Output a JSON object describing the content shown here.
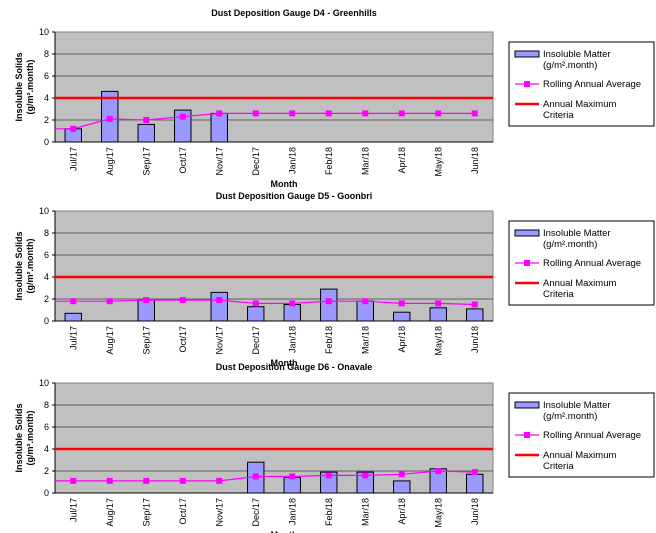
{
  "chart_data": [
    {
      "type": "bar",
      "title": "Dust Deposition Gauge D4 - Greenhills",
      "xlabel": "Month",
      "ylabel": [
        "Insoluble Solids",
        "(g/m².month)"
      ],
      "categories": [
        "Jul/17",
        "Aug/17",
        "Sep/17",
        "Oct/17",
        "Nov/17",
        "Dec/17",
        "Jan/18",
        "Feb/18",
        "Mar/18",
        "Apr/18",
        "May/18",
        "Jun/18"
      ],
      "ylim": [
        0,
        10
      ],
      "yticks": [
        "0",
        "2",
        "4",
        "6",
        "8",
        "10"
      ],
      "grid": true,
      "legend_position": "right",
      "series": [
        {
          "name": "Insoluble Matter (g/m².month)",
          "type": "bar",
          "values": [
            1.2,
            4.6,
            1.6,
            2.9,
            2.6,
            null,
            null,
            null,
            null,
            null,
            null,
            null
          ]
        },
        {
          "name": "Rolling Annual Average",
          "type": "line",
          "values": [
            1.2,
            2.1,
            2.0,
            2.3,
            2.6,
            2.6,
            2.6,
            2.6,
            2.6,
            2.6,
            2.6,
            2.6
          ]
        },
        {
          "name": "Annual Maximum Criteria",
          "type": "hline",
          "value": 4
        }
      ]
    },
    {
      "type": "bar",
      "title": "Dust Deposition Gauge D5 - Goonbri",
      "xlabel": "Month",
      "ylabel": [
        "Insoluble Solids",
        "(g/m².month)"
      ],
      "categories": [
        "Jul/17",
        "Aug/17",
        "Sep/17",
        "Oct/17",
        "Nov/17",
        "Dec/17",
        "Jan/18",
        "Feb/18",
        "Mar/18",
        "Apr/18",
        "May/18",
        "Jun/18"
      ],
      "ylim": [
        0,
        10
      ],
      "yticks": [
        "0",
        "2",
        "4",
        "6",
        "8",
        "10"
      ],
      "grid": true,
      "legend_position": "right",
      "series": [
        {
          "name": "Insoluble Matter (g/m².month)",
          "type": "bar",
          "values": [
            0.7,
            null,
            1.9,
            null,
            2.6,
            1.3,
            1.5,
            2.9,
            1.8,
            0.8,
            1.2,
            1.1
          ]
        },
        {
          "name": "Rolling Annual Average",
          "type": "line",
          "values": [
            1.8,
            1.8,
            1.9,
            1.9,
            1.9,
            1.6,
            1.6,
            1.8,
            1.8,
            1.6,
            1.6,
            1.5
          ]
        },
        {
          "name": "Annual Maximum Criteria",
          "type": "hline",
          "value": 4
        }
      ]
    },
    {
      "type": "bar",
      "title": "Dust Deposition Gauge D6 - Onavale",
      "xlabel": "Month",
      "ylabel": [
        "Insoluble Solids",
        "(g/m².month)"
      ],
      "categories": [
        "Jul/17",
        "Aug/17",
        "Sep/17",
        "Oct/17",
        "Nov/17",
        "Dec/17",
        "Jan/18",
        "Feb/18",
        "Mar/18",
        "Apr/18",
        "May/18",
        "Jun/18"
      ],
      "ylim": [
        0,
        10
      ],
      "yticks": [
        "0",
        "2",
        "4",
        "6",
        "8",
        "10"
      ],
      "grid": true,
      "legend_position": "right",
      "series": [
        {
          "name": "Insoluble Matter (g/m².month)",
          "type": "bar",
          "values": [
            null,
            null,
            null,
            null,
            null,
            2.8,
            1.4,
            1.9,
            1.9,
            1.1,
            2.2,
            1.7
          ]
        },
        {
          "name": "Rolling Annual Average",
          "type": "line",
          "values": [
            1.1,
            1.1,
            1.1,
            1.1,
            1.1,
            1.5,
            1.5,
            1.6,
            1.6,
            1.7,
            2.0,
            1.9
          ]
        },
        {
          "name": "Annual Maximum Criteria",
          "type": "hline",
          "value": 4
        }
      ]
    }
  ],
  "legend": {
    "bar_label_line1": "Insoluble Matter",
    "bar_label_line2": "(g/m².month)",
    "avg_label": "Rolling Annual Average",
    "crit_label_line1": "Annual Maximum",
    "crit_label_line2": "Criteria"
  },
  "colors": {
    "plot_bg": "#c0c0c0",
    "bar_fill": "#9999ff",
    "bar_stroke": "#000000",
    "avg_line": "#ff00ff",
    "criteria_line": "#ff0000",
    "grid": "#000000"
  }
}
